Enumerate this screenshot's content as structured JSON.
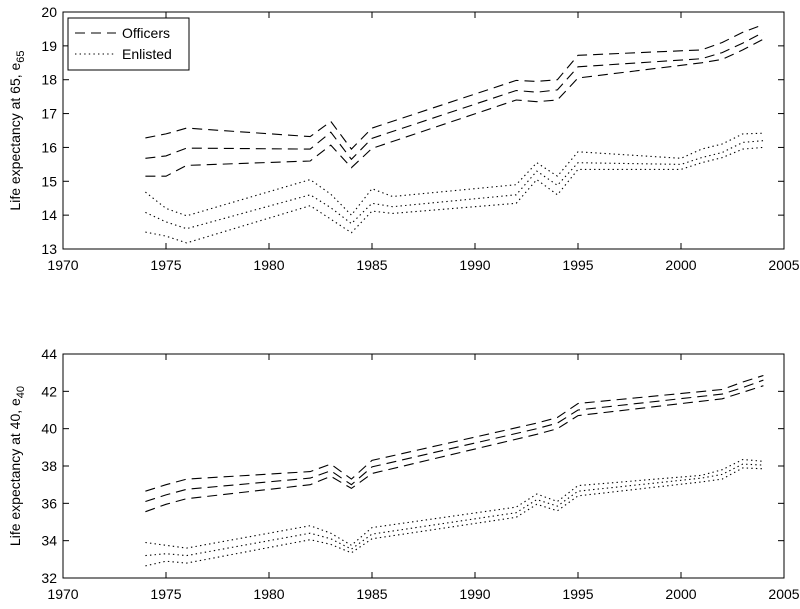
{
  "chart_data": [
    {
      "type": "line",
      "ylabel": "Life expectancy at 65, e",
      "ylabel_sub": "65",
      "xlim": [
        1970,
        2005
      ],
      "ylim": [
        13,
        20
      ],
      "xticks": [
        1970,
        1975,
        1980,
        1985,
        1990,
        1995,
        2000,
        2005
      ],
      "yticks": [
        13,
        14,
        15,
        16,
        17,
        18,
        19,
        20
      ],
      "grid": false,
      "legend": {
        "placement": "top-left",
        "entries": [
          "Officers",
          "Enlisted"
        ]
      },
      "series": [
        {
          "name": "Officers",
          "style": "dashed",
          "x": [
            1974,
            1975,
            1976,
            1982,
            1983,
            1984,
            1985,
            1992,
            1993,
            1994,
            1995,
            2001,
            2002,
            2003,
            2004
          ],
          "y": [
            16.28,
            16.4,
            16.57,
            16.32,
            16.77,
            15.95,
            16.57,
            17.98,
            17.95,
            18.0,
            18.72,
            18.88,
            19.1,
            19.4,
            19.63
          ]
        },
        {
          "name": "Officers",
          "style": "dashed",
          "x": [
            1974,
            1975,
            1976,
            1982,
            1983,
            1984,
            1985,
            1992,
            1993,
            1994,
            1995,
            2001,
            2002,
            2003,
            2004
          ],
          "y": [
            15.68,
            15.75,
            15.98,
            15.95,
            16.45,
            15.65,
            16.27,
            17.68,
            17.63,
            17.7,
            18.38,
            18.62,
            18.8,
            19.08,
            19.4
          ]
        },
        {
          "name": "Officers",
          "style": "dashed",
          "x": [
            1974,
            1975,
            1976,
            1982,
            1983,
            1984,
            1985,
            1992,
            1993,
            1994,
            1995,
            2001,
            2002,
            2003,
            2004
          ],
          "y": [
            15.15,
            15.15,
            15.47,
            15.6,
            16.07,
            15.4,
            15.97,
            17.4,
            17.35,
            17.4,
            18.05,
            18.5,
            18.6,
            18.88,
            19.2
          ]
        },
        {
          "name": "Enlisted",
          "style": "dotted",
          "x": [
            1974,
            1975,
            1976,
            1982,
            1983,
            1984,
            1985,
            1986,
            1992,
            1993,
            1994,
            1995,
            2000,
            2001,
            2002,
            2003,
            2004
          ],
          "y": [
            14.68,
            14.2,
            13.98,
            15.05,
            14.62,
            14.0,
            14.78,
            14.55,
            14.9,
            15.55,
            15.15,
            15.87,
            15.68,
            15.95,
            16.1,
            16.4,
            16.42
          ]
        },
        {
          "name": "Enlisted",
          "style": "dotted",
          "x": [
            1974,
            1975,
            1976,
            1982,
            1983,
            1984,
            1985,
            1986,
            1992,
            1993,
            1994,
            1995,
            2000,
            2001,
            2002,
            2003,
            2004
          ],
          "y": [
            14.08,
            13.8,
            13.6,
            14.6,
            14.22,
            13.75,
            14.35,
            14.25,
            14.6,
            15.3,
            14.88,
            15.55,
            15.5,
            15.7,
            15.85,
            16.15,
            16.2
          ]
        },
        {
          "name": "Enlisted",
          "style": "dotted",
          "x": [
            1974,
            1975,
            1976,
            1982,
            1983,
            1984,
            1985,
            1986,
            1992,
            1993,
            1994,
            1995,
            2000,
            2001,
            2002,
            2003,
            2004
          ],
          "y": [
            13.5,
            13.38,
            13.18,
            14.28,
            13.88,
            13.48,
            14.12,
            14.05,
            14.35,
            15.05,
            14.6,
            15.35,
            15.35,
            15.55,
            15.7,
            15.95,
            16.0
          ]
        }
      ]
    },
    {
      "type": "line",
      "ylabel": "Life expectancy at 40, e",
      "ylabel_sub": "40",
      "xlim": [
        1970,
        2005
      ],
      "ylim": [
        32,
        44
      ],
      "xticks": [
        1970,
        1975,
        1980,
        1985,
        1990,
        1995,
        2000,
        2005
      ],
      "yticks": [
        32,
        34,
        36,
        38,
        40,
        42,
        44
      ],
      "grid": false,
      "series": [
        {
          "name": "Officers",
          "style": "dashed",
          "x": [
            1974,
            1975,
            1976,
            1982,
            1983,
            1984,
            1985,
            1993,
            1994,
            1995,
            2002,
            2003,
            2004
          ],
          "y": [
            36.65,
            37.0,
            37.3,
            37.7,
            38.1,
            37.3,
            38.3,
            40.3,
            40.6,
            41.35,
            42.1,
            42.5,
            42.85
          ]
        },
        {
          "name": "Officers",
          "style": "dashed",
          "x": [
            1974,
            1975,
            1976,
            1982,
            1983,
            1984,
            1985,
            1993,
            1994,
            1995,
            2002,
            2003,
            2004
          ],
          "y": [
            36.1,
            36.45,
            36.75,
            37.35,
            37.75,
            37.0,
            37.95,
            40.0,
            40.3,
            41.0,
            41.85,
            42.2,
            42.6
          ]
        },
        {
          "name": "Officers",
          "style": "dashed",
          "x": [
            1974,
            1975,
            1976,
            1982,
            1983,
            1984,
            1985,
            1993,
            1994,
            1995,
            2002,
            2003,
            2004
          ],
          "y": [
            35.55,
            35.95,
            36.25,
            37.0,
            37.45,
            36.8,
            37.6,
            39.7,
            40.0,
            40.7,
            41.6,
            41.95,
            42.3
          ]
        },
        {
          "name": "Enlisted",
          "style": "dotted",
          "x": [
            1974,
            1975,
            1976,
            1982,
            1983,
            1984,
            1985,
            1992,
            1993,
            1994,
            1995,
            2001,
            2002,
            2003,
            2004
          ],
          "y": [
            33.9,
            33.75,
            33.6,
            34.8,
            34.4,
            33.75,
            34.7,
            35.8,
            36.5,
            36.1,
            36.95,
            37.5,
            37.8,
            38.35,
            38.25
          ]
        },
        {
          "name": "Enlisted",
          "style": "dotted",
          "x": [
            1974,
            1975,
            1976,
            1982,
            1983,
            1984,
            1985,
            1992,
            1993,
            1994,
            1995,
            2001,
            2002,
            2003,
            2004
          ],
          "y": [
            33.2,
            33.3,
            33.2,
            34.4,
            34.1,
            33.55,
            34.35,
            35.5,
            36.2,
            35.85,
            36.65,
            37.35,
            37.55,
            38.1,
            38.05
          ]
        },
        {
          "name": "Enlisted",
          "style": "dotted",
          "x": [
            1974,
            1975,
            1976,
            1982,
            1983,
            1984,
            1985,
            1992,
            1993,
            1994,
            1995,
            2001,
            2002,
            2003,
            2004
          ],
          "y": [
            32.65,
            32.9,
            32.8,
            34.05,
            33.8,
            33.35,
            34.1,
            35.25,
            35.95,
            35.6,
            36.4,
            37.15,
            37.3,
            37.9,
            37.85
          ]
        }
      ]
    }
  ]
}
